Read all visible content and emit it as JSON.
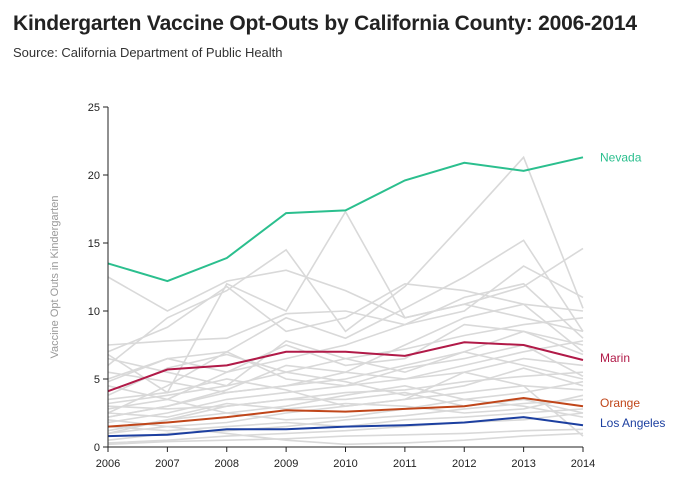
{
  "header": {
    "title": "Kindergarten Vaccine Opt-Outs by California County: 2006-2014",
    "subtitle": "Source: California Department of Public Health"
  },
  "chart_data": {
    "type": "line",
    "title": "Kindergarten Vaccine Opt-Outs by California County: 2006-2014",
    "xlabel": "",
    "ylabel": "Vaccine Opt Outs in Kindergarten",
    "x": [
      2006,
      2007,
      2008,
      2009,
      2010,
      2011,
      2012,
      2013,
      2014
    ],
    "ylim": [
      0,
      25
    ],
    "yticks": [
      0,
      5,
      10,
      15,
      20,
      25
    ],
    "grid": false,
    "colors": {
      "background": "#d9d9d9",
      "Nevada": "#2bbf8e",
      "Marin": "#b11a48",
      "Orange": "#c0461a",
      "Los Angeles": "#1c3fa0"
    },
    "series": [
      {
        "name": "Nevada",
        "values": [
          13.5,
          12.2,
          13.9,
          17.2,
          17.4,
          19.6,
          20.9,
          20.3,
          21.3
        ]
      },
      {
        "name": "Marin",
        "values": [
          4.1,
          5.7,
          6.0,
          7.0,
          7.0,
          6.7,
          7.7,
          7.5,
          6.4
        ]
      },
      {
        "name": "Orange",
        "values": [
          1.5,
          1.8,
          2.2,
          2.7,
          2.6,
          2.8,
          3.0,
          3.6,
          3.0
        ]
      },
      {
        "name": "Los Angeles",
        "values": [
          0.8,
          0.9,
          1.3,
          1.3,
          1.5,
          1.6,
          1.8,
          2.2,
          1.6
        ]
      }
    ],
    "background_series": [
      [
        12.5,
        10.0,
        12.2,
        13.0,
        11.5,
        9.5,
        10.5,
        9.5,
        8.5
      ],
      [
        7.0,
        8.8,
        11.8,
        8.5,
        9.5,
        12.0,
        11.5,
        10.5,
        10.0
      ],
      [
        6.0,
        9.5,
        11.5,
        14.5,
        8.5,
        11.8,
        16.5,
        21.3,
        10.2
      ],
      [
        3.5,
        4.0,
        12.0,
        10.0,
        17.3,
        9.5,
        10.5,
        11.8,
        14.6
      ],
      [
        2.5,
        4.5,
        7.0,
        9.5,
        8.0,
        10.2,
        12.5,
        15.2,
        8.5
      ],
      [
        5.0,
        6.5,
        5.5,
        6.5,
        7.5,
        9.0,
        10.0,
        13.3,
        11.0
      ],
      [
        3.8,
        5.8,
        6.8,
        5.5,
        6.5,
        7.2,
        8.2,
        9.0,
        9.5
      ],
      [
        4.5,
        3.5,
        5.5,
        7.5,
        6.0,
        6.5,
        9.0,
        8.5,
        7.5
      ],
      [
        2.2,
        3.0,
        4.0,
        4.5,
        5.5,
        5.0,
        6.0,
        7.0,
        7.8
      ],
      [
        1.8,
        2.5,
        3.5,
        4.0,
        4.5,
        5.0,
        5.5,
        6.5,
        6.0
      ],
      [
        3.0,
        2.8,
        3.0,
        3.5,
        4.0,
        4.2,
        4.8,
        5.2,
        5.5
      ],
      [
        1.0,
        1.5,
        1.8,
        2.5,
        3.0,
        3.5,
        4.0,
        4.5,
        4.2
      ],
      [
        0.5,
        1.0,
        1.2,
        1.5,
        2.0,
        2.3,
        2.8,
        3.2,
        3.5
      ],
      [
        0.3,
        0.5,
        0.8,
        1.0,
        1.2,
        1.5,
        1.8,
        2.0,
        2.5
      ],
      [
        2.0,
        1.5,
        1.0,
        0.5,
        0.2,
        0.3,
        0.5,
        0.8,
        1.0
      ],
      [
        6.5,
        5.5,
        4.5,
        7.8,
        6.5,
        5.5,
        7.0,
        8.5,
        6.8
      ],
      [
        2.8,
        3.5,
        2.5,
        3.0,
        3.8,
        4.5,
        3.5,
        4.0,
        4.8
      ],
      [
        1.2,
        2.0,
        2.5,
        2.0,
        2.2,
        2.8,
        3.5,
        3.0,
        2.2
      ],
      [
        4.8,
        6.5,
        7.0,
        5.0,
        4.5,
        5.8,
        6.5,
        7.5,
        5.2
      ],
      [
        0.2,
        0.4,
        0.5,
        0.6,
        0.8,
        0.9,
        1.0,
        1.2,
        1.3
      ],
      [
        7.5,
        7.8,
        8.0,
        9.8,
        10.0,
        9.0,
        11.0,
        12.0,
        8.0
      ],
      [
        3.2,
        3.8,
        4.5,
        5.5,
        4.8,
        3.8,
        4.5,
        5.8,
        4.5
      ],
      [
        2.5,
        2.2,
        3.2,
        2.8,
        3.2,
        3.0,
        2.5,
        2.8,
        3.8
      ],
      [
        5.5,
        4.8,
        4.0,
        4.5,
        5.0,
        6.0,
        7.0,
        6.0,
        5.0
      ],
      [
        1.5,
        1.2,
        1.5,
        1.8,
        1.5,
        2.0,
        2.2,
        2.5,
        2.8
      ],
      [
        2.2,
        3.0,
        4.2,
        6.0,
        5.5,
        7.5,
        9.5,
        10.5,
        7.0
      ],
      [
        1.0,
        2.0,
        3.0,
        3.5,
        3.5,
        4.0,
        3.0,
        3.5,
        2.5
      ],
      [
        6.8,
        4.0,
        5.0,
        4.2,
        3.0,
        3.5,
        5.5,
        4.5,
        0.8
      ]
    ],
    "series_labels": [
      "Nevada",
      "Marin",
      "Orange",
      "Los Angeles"
    ]
  }
}
